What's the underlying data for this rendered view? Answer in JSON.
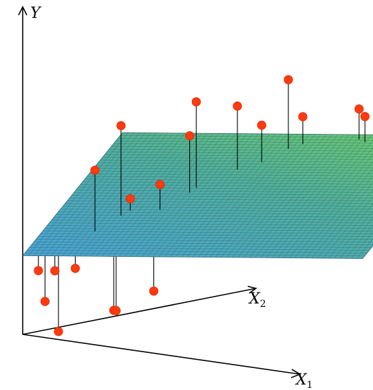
{
  "chart_data": {
    "type": "3d-scatter-regression-plane",
    "axes": {
      "y": {
        "letter": "Y",
        "sub": ""
      },
      "x2": {
        "letter": "X",
        "sub": "2"
      },
      "x1": {
        "letter": "X",
        "sub": "1"
      }
    },
    "plane": {
      "intercept": 0.62,
      "slope_x1": 0.28,
      "slope_x2": 0.46
    },
    "points": [
      {
        "x1": 0.07,
        "x2": 0.04,
        "y": 0.26
      },
      {
        "x1": 0.14,
        "x2": 0.16,
        "y": 0.48
      },
      {
        "x1": 0.2,
        "x2": 0.2,
        "y": 1.25
      },
      {
        "x1": 0.22,
        "x2": 0.3,
        "y": 0.56
      },
      {
        "x1": 0.25,
        "x2": 0.33,
        "y": 1.55
      },
      {
        "x1": 0.23,
        "x2": 0.31,
        "y": 0.1
      },
      {
        "x1": 0.27,
        "x2": 0.37,
        "y": 0.96
      },
      {
        "x1": 0.36,
        "x2": 0.37,
        "y": 0.26
      },
      {
        "x1": 0.37,
        "x2": 0.38,
        "y": 0.67
      },
      {
        "x1": 0.38,
        "x2": 0.38,
        "y": 1.1
      },
      {
        "x1": 0.42,
        "x2": 0.49,
        "y": 0.89
      },
      {
        "x1": 0.45,
        "x2": 0.56,
        "y": 1.68
      },
      {
        "x1": 0.44,
        "x2": 0.52,
        "y": 1.43
      },
      {
        "x1": 0.43,
        "x2": 0.6,
        "y": 0.65
      },
      {
        "x1": 0.52,
        "x2": 0.62,
        "y": 0.84
      },
      {
        "x1": 0.55,
        "x2": 0.71,
        "y": 1.6
      },
      {
        "x1": 0.58,
        "x2": 0.74,
        "y": 0.78
      },
      {
        "x1": 0.62,
        "x2": 0.77,
        "y": 1.44
      },
      {
        "x1": 0.6,
        "x2": 0.72,
        "y": 0.45
      },
      {
        "x1": 0.68,
        "x2": 0.88,
        "y": 1.76
      },
      {
        "x1": 0.72,
        "x2": 0.92,
        "y": 1.46
      },
      {
        "x1": 0.78,
        "x2": 0.98,
        "y": 0.98
      },
      {
        "x1": 0.84,
        "x2": 0.9,
        "y": 1.22
      },
      {
        "x1": 0.9,
        "x2": 0.95,
        "y": 1.27
      },
      {
        "x1": 0.92,
        "x2": 0.96,
        "y": 1.56
      },
      {
        "x1": 0.95,
        "x2": 0.94,
        "y": 1.52
      },
      {
        "x1": 0.96,
        "x2": 0.94,
        "y": 1.26
      },
      {
        "x1": 0.97,
        "x2": 0.95,
        "y": 0.55
      },
      {
        "x1": 0.95,
        "x2": 0.92,
        "y": 0.9
      },
      {
        "x1": 0.88,
        "x2": 0.9,
        "y": 0.46
      },
      {
        "x1": 1.0,
        "x2": 0.95,
        "y": 1.25
      },
      {
        "x1": 0.1,
        "x2": 0.06,
        "y": 0.5
      },
      {
        "x1": 0.11,
        "x2": 0.07,
        "y": 0.02
      },
      {
        "x1": 0.66,
        "x2": 0.86,
        "y": 0.96
      },
      {
        "x1": 0.74,
        "x2": 0.9,
        "y": 0.6
      },
      {
        "x1": 0.8,
        "x2": 0.82,
        "y": 0.8
      },
      {
        "x1": 0.3,
        "x2": 0.15,
        "y": 0.2
      },
      {
        "x1": 0.06,
        "x2": 0.0,
        "y": 0.52
      }
    ]
  }
}
